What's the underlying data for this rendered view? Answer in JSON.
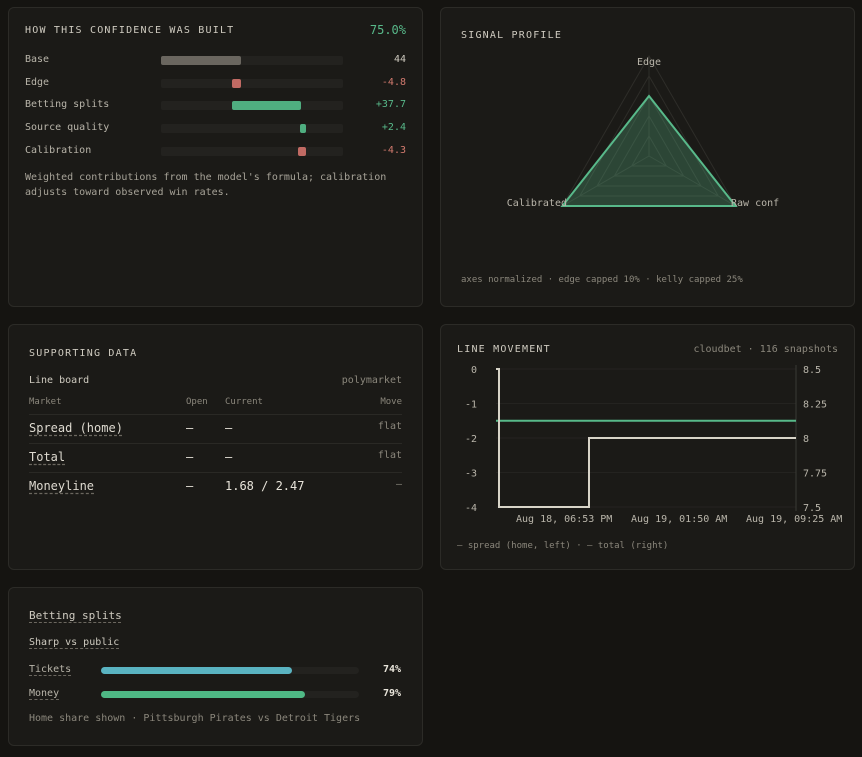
{
  "confidence": {
    "title": "HOW THIS CONFIDENCE WAS BUILT",
    "total": "75.0%",
    "rows": [
      {
        "label": "Base",
        "value": "44",
        "fill": 0.44,
        "color": "#6a665f"
      },
      {
        "label": "Edge",
        "value": "-4.8",
        "fill": 0.048,
        "color": "#c16a63"
      },
      {
        "label": "Betting splits",
        "value": "+37.7",
        "fill": 0.377,
        "color": "#4fae80"
      },
      {
        "label": "Source quality",
        "value": "+2.4",
        "fill": 0.024,
        "color": "#4fae80"
      },
      {
        "label": "Calibration",
        "value": "-4.3",
        "fill": 0.043,
        "color": "#c16a63"
      }
    ],
    "note": "Weighted contributions from the model's formula; calibration adjusts toward observed win rates."
  },
  "signal": {
    "title": "SIGNAL PROFILE",
    "axes": [
      "Edge",
      "Raw conf",
      "Calibrated"
    ],
    "values": [
      0.6,
      1.0,
      1.0
    ],
    "note": "axes normalized · edge capped 10% · kelly capped 25%"
  },
  "supporting": {
    "title": "SUPPORTING DATA",
    "board_label": "Line board",
    "source": "polymarket",
    "headers": {
      "market": "Market",
      "open": "Open",
      "current": "Current",
      "move": "Move"
    },
    "rows": [
      {
        "market": "Spread (home)",
        "open": "—",
        "current": "—",
        "move": "flat"
      },
      {
        "market": "Total",
        "open": "—",
        "current": "—",
        "move": "flat"
      },
      {
        "market": "Moneyline",
        "open": "—",
        "current": "1.68 / 2.47",
        "move": "—"
      }
    ]
  },
  "line_movement": {
    "title": "LINE MOVEMENT",
    "meta": "cloudbet · 116 snapshots",
    "legend": "— spread (home, left) · — total (right)",
    "colors": {
      "spread": "#58b98a",
      "total": "#d8d4c8"
    }
  },
  "chart_data": {
    "type": "line",
    "title": "",
    "x_ticks": [
      "Aug 18, 06:53 PM",
      "Aug 19, 01:50 AM",
      "Aug 19, 09:25 AM"
    ],
    "y_left": {
      "ticks": [
        "0",
        "-1",
        "-2",
        "-3",
        "-4"
      ],
      "range": [
        -4,
        0
      ]
    },
    "y_right": {
      "ticks": [
        "8.5",
        "8.25",
        "8",
        "7.75",
        "7.5"
      ],
      "range": [
        7.5,
        8.5
      ]
    },
    "series": [
      {
        "name": "spread (home, left)",
        "axis": "left",
        "points": [
          [
            0,
            -1.5
          ],
          [
            1,
            -1.5
          ]
        ]
      },
      {
        "name": "total (right)",
        "axis": "right",
        "points": [
          [
            0,
            8.5
          ],
          [
            0.01,
            8.5
          ],
          [
            0.01,
            7.5
          ],
          [
            0.31,
            7.5
          ],
          [
            0.31,
            8.0
          ],
          [
            1,
            8.0
          ]
        ]
      }
    ]
  },
  "splits": {
    "title": "Betting splits",
    "subtitle": "Sharp vs public",
    "rows": [
      {
        "label": "Tickets",
        "pct": "74%",
        "fill": 0.74,
        "color": "#5ab3c1"
      },
      {
        "label": "Money",
        "pct": "79%",
        "fill": 0.79,
        "color": "#4fb985"
      }
    ],
    "note": "Home share shown · Pittsburgh Pirates vs Detroit Tigers"
  }
}
